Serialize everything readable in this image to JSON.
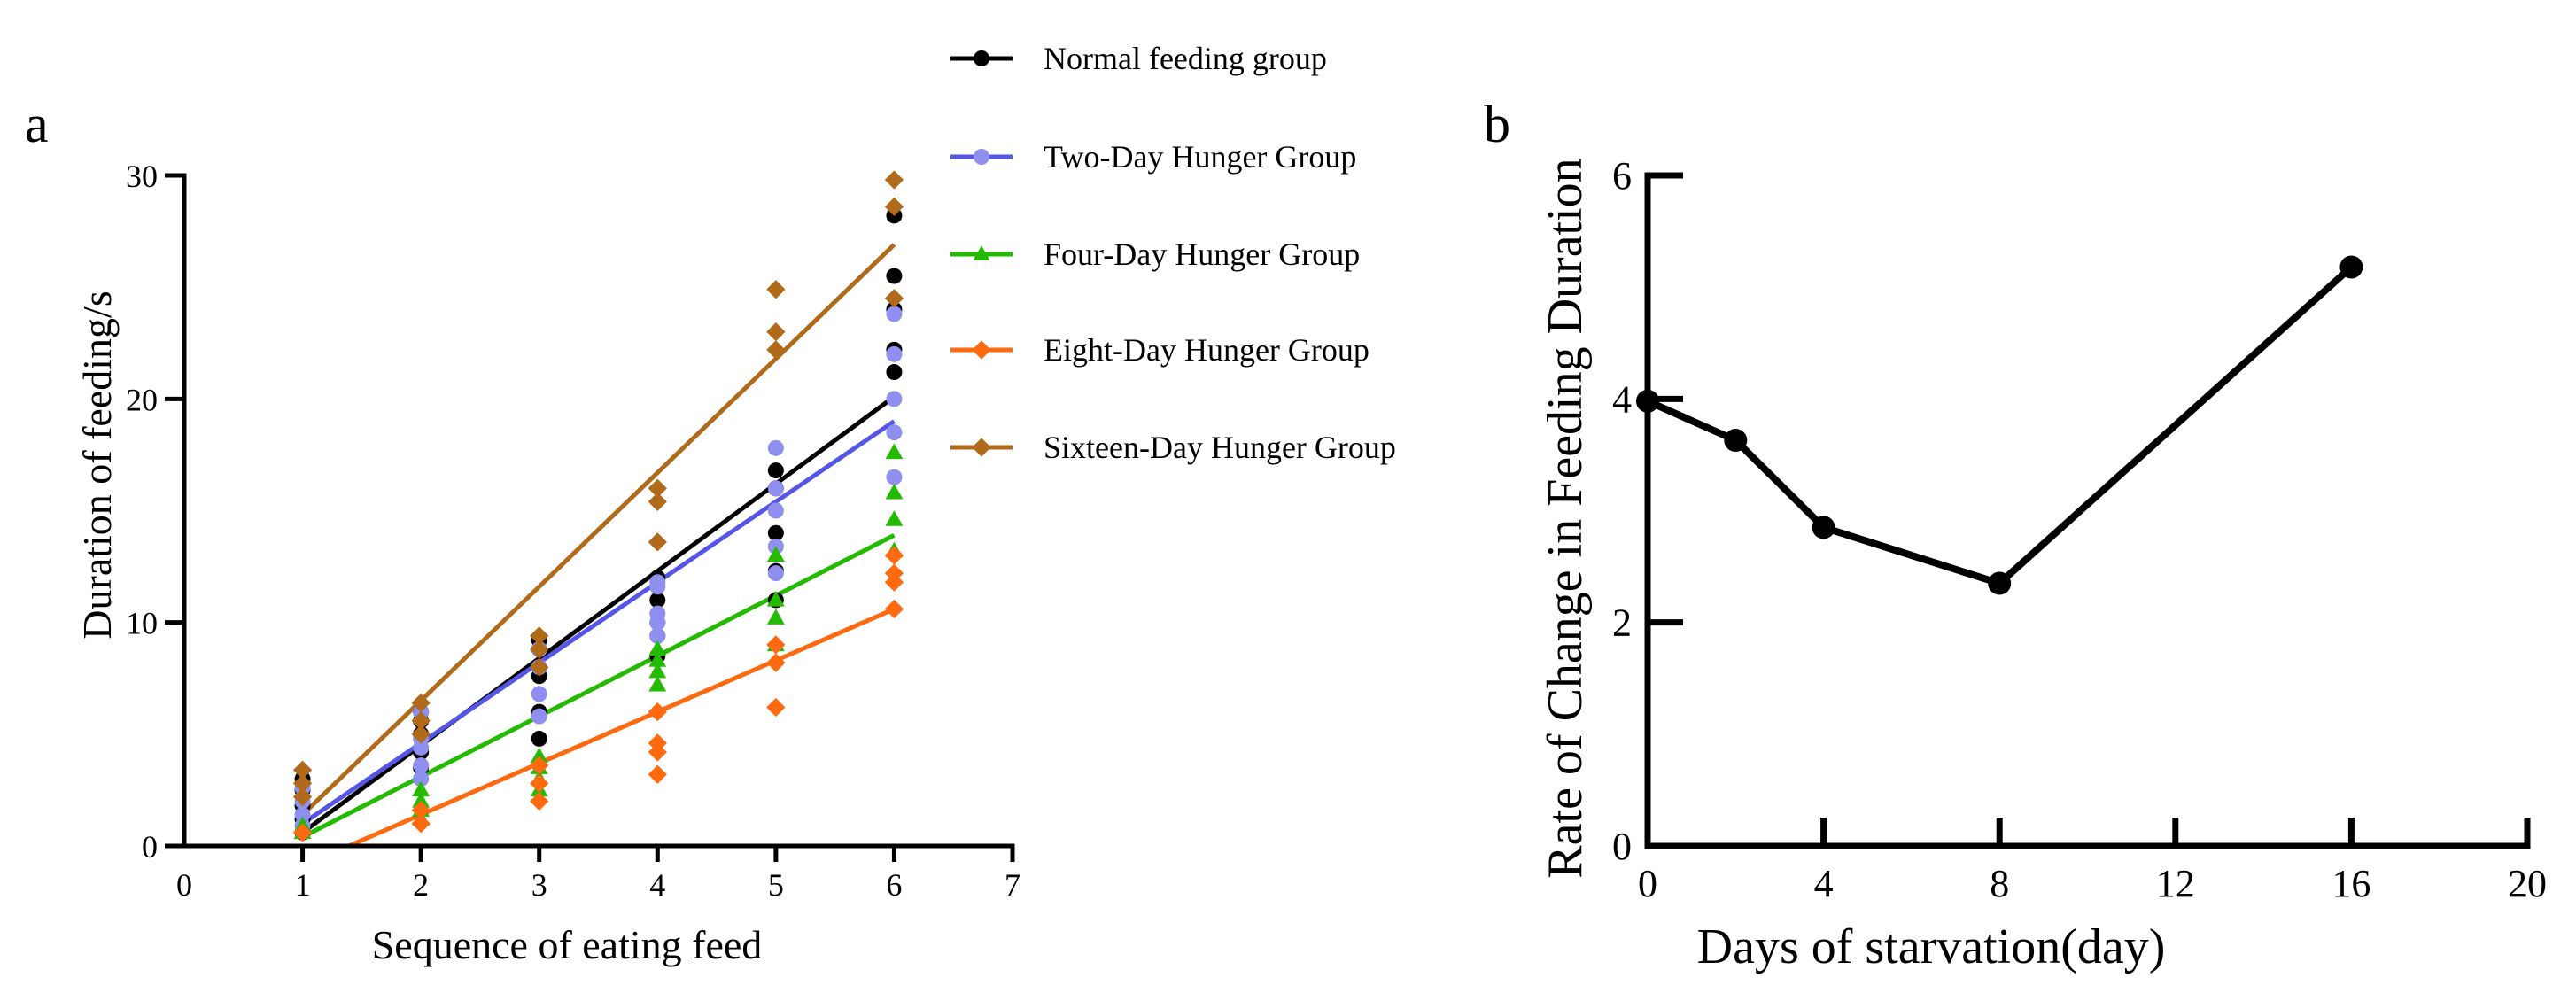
{
  "chart_data": [
    {
      "panel": "a",
      "type": "scatter",
      "title": "",
      "xlabel": "Sequence of eating feed",
      "ylabel": "Duration of feeding/s",
      "xlim": [
        0,
        7
      ],
      "ylim": [
        0,
        30
      ],
      "xticks": [
        0,
        1,
        2,
        3,
        4,
        5,
        6,
        7
      ],
      "yticks": [
        0,
        10,
        20,
        30
      ],
      "legend_position": "right",
      "series": [
        {
          "name": "Normal feeding group",
          "color": "#000000",
          "marker": "circle",
          "fit": {
            "slope": 3.9,
            "intercept": -3.3
          },
          "points": [
            [
              1,
              0.6
            ],
            [
              1,
              1.2
            ],
            [
              1,
              1.8
            ],
            [
              1,
              2.5
            ],
            [
              1,
              3.0
            ],
            [
              2,
              3.5
            ],
            [
              2,
              4.2
            ],
            [
              2,
              5.0
            ],
            [
              2,
              5.6
            ],
            [
              2,
              6.0
            ],
            [
              3,
              4.8
            ],
            [
              3,
              6.0
            ],
            [
              3,
              7.6
            ],
            [
              3,
              8.8
            ],
            [
              3,
              9.2
            ],
            [
              4,
              8.5
            ],
            [
              4,
              9.4
            ],
            [
              4,
              10.0
            ],
            [
              4,
              11.0
            ],
            [
              4,
              12.0
            ],
            [
              5,
              11.0
            ],
            [
              5,
              12.3
            ],
            [
              5,
              14.0
            ],
            [
              5,
              16.8
            ],
            [
              5,
              16.0
            ],
            [
              6,
              21.2
            ],
            [
              6,
              22.2
            ],
            [
              6,
              24.0
            ],
            [
              6,
              25.5
            ],
            [
              6,
              28.2
            ]
          ]
        },
        {
          "name": "Two-Day Hunger Group",
          "color": "#8f8ff0",
          "line_color": "#5555e8",
          "marker": "circle",
          "fit": {
            "slope": 3.6,
            "intercept": -2.6
          },
          "points": [
            [
              1,
              0.9
            ],
            [
              1,
              1.4
            ],
            [
              1,
              2.0
            ],
            [
              1,
              2.6
            ],
            [
              2,
              3.0
            ],
            [
              2,
              3.6
            ],
            [
              2,
              4.4
            ],
            [
              2,
              4.8
            ],
            [
              2,
              6.0
            ],
            [
              3,
              5.8
            ],
            [
              3,
              6.8
            ],
            [
              3,
              8.0
            ],
            [
              3,
              8.8
            ],
            [
              4,
              9.4
            ],
            [
              4,
              10.0
            ],
            [
              4,
              10.4
            ],
            [
              4,
              11.6
            ],
            [
              4,
              11.8
            ],
            [
              5,
              12.2
            ],
            [
              5,
              13.4
            ],
            [
              5,
              15.0
            ],
            [
              5,
              16.0
            ],
            [
              5,
              17.8
            ],
            [
              6,
              16.5
            ],
            [
              6,
              18.5
            ],
            [
              6,
              20.0
            ],
            [
              6,
              22.0
            ],
            [
              6,
              23.8
            ]
          ]
        },
        {
          "name": "Four-Day Hunger Group",
          "color": "#22bb00",
          "marker": "triangle",
          "fit": {
            "slope": 2.7,
            "intercept": -2.3
          },
          "points": [
            [
              1,
              0.6
            ],
            [
              1,
              0.9
            ],
            [
              2,
              1.2
            ],
            [
              2,
              1.6
            ],
            [
              2,
              2.0
            ],
            [
              2,
              2.5
            ],
            [
              3,
              2.5
            ],
            [
              3,
              3.0
            ],
            [
              3,
              3.5
            ],
            [
              3,
              4.0
            ],
            [
              4,
              7.2
            ],
            [
              4,
              7.8
            ],
            [
              4,
              8.3
            ],
            [
              4,
              8.8
            ],
            [
              5,
              9.0
            ],
            [
              5,
              10.2
            ],
            [
              5,
              11.0
            ],
            [
              5,
              13.0
            ],
            [
              6,
              13.2
            ],
            [
              6,
              14.6
            ],
            [
              6,
              15.8
            ],
            [
              6,
              17.6
            ]
          ]
        },
        {
          "name": "Eight-Day Hunger Group",
          "color": "#ff6a10",
          "marker": "diamond",
          "fit": {
            "slope": 2.3,
            "intercept": -3.2
          },
          "points": [
            [
              1,
              0.6
            ],
            [
              2,
              1.0
            ],
            [
              2,
              1.6
            ],
            [
              3,
              2.0
            ],
            [
              3,
              2.8
            ],
            [
              3,
              3.6
            ],
            [
              4,
              3.2
            ],
            [
              4,
              4.2
            ],
            [
              4,
              4.6
            ],
            [
              4,
              6.0
            ],
            [
              5,
              6.2
            ],
            [
              5,
              8.2
            ],
            [
              5,
              9.0
            ],
            [
              6,
              10.6
            ],
            [
              6,
              11.8
            ],
            [
              6,
              12.2
            ],
            [
              6,
              13.0
            ]
          ]
        },
        {
          "name": "Sixteen-Day Hunger Group",
          "color": "#b06a1a",
          "marker": "diamond",
          "fit": {
            "slope": 5.1,
            "intercept": -3.7
          },
          "points": [
            [
              1,
              2.2
            ],
            [
              1,
              2.8
            ],
            [
              1,
              3.4
            ],
            [
              2,
              5.0
            ],
            [
              2,
              5.6
            ],
            [
              2,
              6.4
            ],
            [
              3,
              8.0
            ],
            [
              3,
              8.8
            ],
            [
              3,
              9.4
            ],
            [
              4,
              13.6
            ],
            [
              4,
              15.4
            ],
            [
              4,
              16.0
            ],
            [
              5,
              22.2
            ],
            [
              5,
              23.0
            ],
            [
              5,
              24.9
            ],
            [
              6,
              24.5
            ],
            [
              6,
              28.6
            ],
            [
              6,
              29.8
            ]
          ]
        }
      ]
    },
    {
      "panel": "b",
      "type": "line",
      "title": "",
      "xlabel": "Days of starvation(day)",
      "ylabel": "Rate of Change in Feeding Duration",
      "xlim": [
        0,
        20
      ],
      "ylim": [
        0,
        6
      ],
      "xticks": [
        0,
        4,
        8,
        12,
        16,
        20
      ],
      "yticks": [
        0,
        2,
        4,
        6
      ],
      "series": [
        {
          "name": "Rate of change",
          "color": "#000000",
          "marker": "circle",
          "x": [
            0,
            2,
            4,
            8,
            16
          ],
          "y": [
            3.98,
            3.63,
            2.85,
            2.35,
            5.18
          ]
        }
      ]
    }
  ]
}
